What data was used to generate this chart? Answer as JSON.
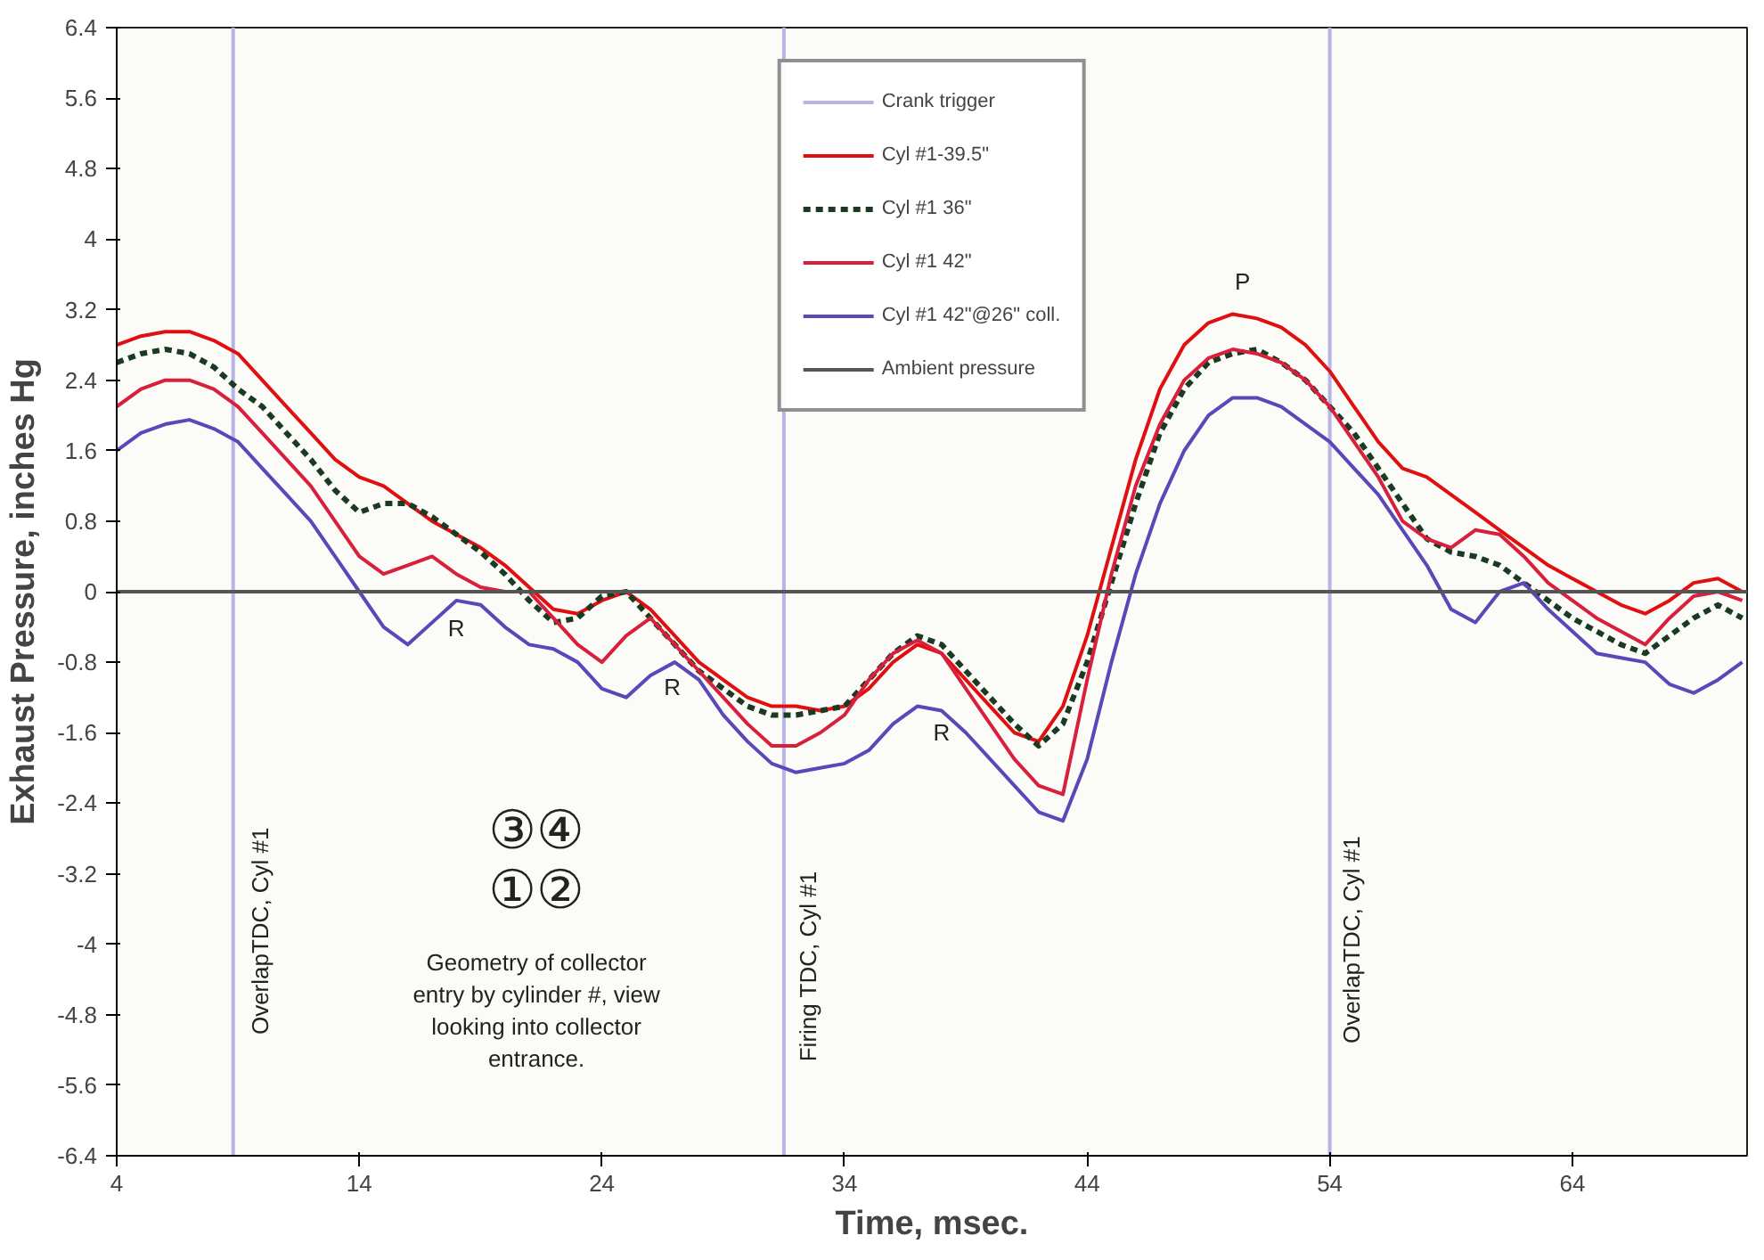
{
  "chart_data": {
    "type": "line",
    "xlabel": "Time, msec.",
    "ylabel": "Exhaust Pressure, inches Hg",
    "xlim": [
      4,
      71.2
    ],
    "ylim": [
      -6.4,
      6.4
    ],
    "xticks": [
      4,
      14,
      24,
      34,
      44,
      54,
      64
    ],
    "yticks": [
      6.4,
      5.6,
      4.8,
      4,
      3.2,
      2.4,
      1.6,
      0.8,
      0,
      -0.8,
      -1.6,
      -2.4,
      -3.2,
      -4,
      -4.8,
      -5.6,
      -6.4
    ],
    "grid": false,
    "legend": "top",
    "marker": "none",
    "x": [
      4,
      5,
      6,
      7,
      8,
      9,
      10,
      11,
      12,
      13,
      14,
      15,
      16,
      17,
      18,
      19,
      20,
      21,
      22,
      23,
      24,
      25,
      26,
      27,
      28,
      29,
      30,
      31,
      32,
      33,
      34,
      35,
      36,
      37,
      38,
      39,
      40,
      41,
      42,
      43,
      44,
      45,
      46,
      47,
      48,
      49,
      50,
      51,
      52,
      53,
      54,
      55,
      56,
      57,
      58,
      59,
      60,
      61,
      62,
      63,
      64,
      65,
      66,
      67,
      68,
      69,
      70,
      71
    ],
    "series": [
      {
        "name": "Crank trigger",
        "color": "#b8b4e8",
        "line_style": "solid",
        "x": [
          8.8,
          8.8,
          null,
          31.5,
          31.5,
          null,
          54,
          54
        ],
        "values": [
          6.4,
          -6.4,
          null,
          6.4,
          -6.4,
          null,
          6.4,
          -6.4
        ]
      },
      {
        "name": "Cyl #1-39.5\"",
        "color": "#e01010",
        "line_style": "solid",
        "values": [
          2.8,
          2.9,
          2.95,
          2.95,
          2.85,
          2.7,
          2.4,
          2.1,
          1.8,
          1.5,
          1.3,
          1.2,
          1.0,
          0.8,
          0.65,
          0.5,
          0.3,
          0.05,
          -0.2,
          -0.25,
          -0.1,
          0.0,
          -0.2,
          -0.5,
          -0.8,
          -1.0,
          -1.2,
          -1.3,
          -1.3,
          -1.35,
          -1.3,
          -1.1,
          -0.8,
          -0.6,
          -0.7,
          -1.0,
          -1.3,
          -1.6,
          -1.7,
          -1.3,
          -0.5,
          0.5,
          1.5,
          2.3,
          2.8,
          3.05,
          3.15,
          3.1,
          3.0,
          2.8,
          2.5,
          2.1,
          1.7,
          1.4,
          1.3,
          1.1,
          0.9,
          0.7,
          0.5,
          0.3,
          0.15,
          0.0,
          -0.15,
          -0.25,
          -0.1,
          0.1,
          0.15,
          0.0
        ]
      },
      {
        "name": "Cyl #1 36\"",
        "color": "#1a3a22",
        "line_style": "dashed",
        "values": [
          2.6,
          2.7,
          2.75,
          2.7,
          2.55,
          2.3,
          2.1,
          1.8,
          1.5,
          1.15,
          0.9,
          1.0,
          1.0,
          0.85,
          0.65,
          0.45,
          0.2,
          -0.1,
          -0.35,
          -0.3,
          -0.05,
          0.0,
          -0.3,
          -0.6,
          -0.9,
          -1.1,
          -1.3,
          -1.4,
          -1.4,
          -1.35,
          -1.3,
          -1.0,
          -0.7,
          -0.5,
          -0.6,
          -0.9,
          -1.2,
          -1.5,
          -1.75,
          -1.5,
          -0.8,
          0.1,
          1.0,
          1.8,
          2.3,
          2.6,
          2.7,
          2.75,
          2.6,
          2.4,
          2.1,
          1.8,
          1.4,
          1.0,
          0.6,
          0.45,
          0.4,
          0.3,
          0.1,
          -0.1,
          -0.3,
          -0.45,
          -0.6,
          -0.7,
          -0.5,
          -0.3,
          -0.15,
          -0.3
        ]
      },
      {
        "name": "Cyl #1 42\"",
        "color": "#d8203c",
        "line_style": "solid",
        "values": [
          2.1,
          2.3,
          2.4,
          2.4,
          2.3,
          2.1,
          1.8,
          1.5,
          1.2,
          0.8,
          0.4,
          0.2,
          0.3,
          0.4,
          0.2,
          0.05,
          0.0,
          0.0,
          -0.3,
          -0.6,
          -0.8,
          -0.5,
          -0.3,
          -0.6,
          -0.9,
          -1.2,
          -1.5,
          -1.75,
          -1.75,
          -1.6,
          -1.4,
          -1.0,
          -0.7,
          -0.55,
          -0.7,
          -1.1,
          -1.5,
          -1.9,
          -2.2,
          -2.3,
          -1.0,
          0.2,
          1.2,
          1.9,
          2.4,
          2.65,
          2.75,
          2.7,
          2.6,
          2.4,
          2.1,
          1.7,
          1.3,
          0.8,
          0.6,
          0.5,
          0.7,
          0.65,
          0.4,
          0.1,
          -0.1,
          -0.3,
          -0.45,
          -0.6,
          -0.3,
          -0.05,
          0.0,
          -0.1
        ]
      },
      {
        "name": "Cyl #1 42\"@26\" coll.",
        "color": "#5a48b8",
        "line_style": "solid",
        "values": [
          1.6,
          1.8,
          1.9,
          1.95,
          1.85,
          1.7,
          1.4,
          1.1,
          0.8,
          0.4,
          0.0,
          -0.4,
          -0.6,
          -0.35,
          -0.1,
          -0.15,
          -0.4,
          -0.6,
          -0.65,
          -0.8,
          -1.1,
          -1.2,
          -0.95,
          -0.8,
          -1.0,
          -1.4,
          -1.7,
          -1.95,
          -2.05,
          -2.0,
          -1.95,
          -1.8,
          -1.5,
          -1.3,
          -1.35,
          -1.6,
          -1.9,
          -2.2,
          -2.5,
          -2.6,
          -1.9,
          -0.8,
          0.2,
          1.0,
          1.6,
          2.0,
          2.2,
          2.2,
          2.1,
          1.9,
          1.7,
          1.4,
          1.1,
          0.7,
          0.3,
          -0.2,
          -0.35,
          0.0,
          0.1,
          -0.2,
          -0.45,
          -0.7,
          -0.75,
          -0.8,
          -1.05,
          -1.15,
          -1.0,
          -0.8
        ]
      },
      {
        "name": "Ambient pressure",
        "color": "#555555",
        "line_style": "solid",
        "x": [
          4,
          71.2
        ],
        "values": [
          0,
          0
        ]
      }
    ],
    "annotations": [
      "OverlapTDC, Cyl #1",
      "Firing TDC, Cyl #1",
      "OverlapTDC, Cyl #1",
      "R",
      "R",
      "R",
      "P",
      "③④",
      "①②",
      "Geometry of collector\nentry by cylinder #, view\nlooking into collector\nentrance."
    ]
  }
}
